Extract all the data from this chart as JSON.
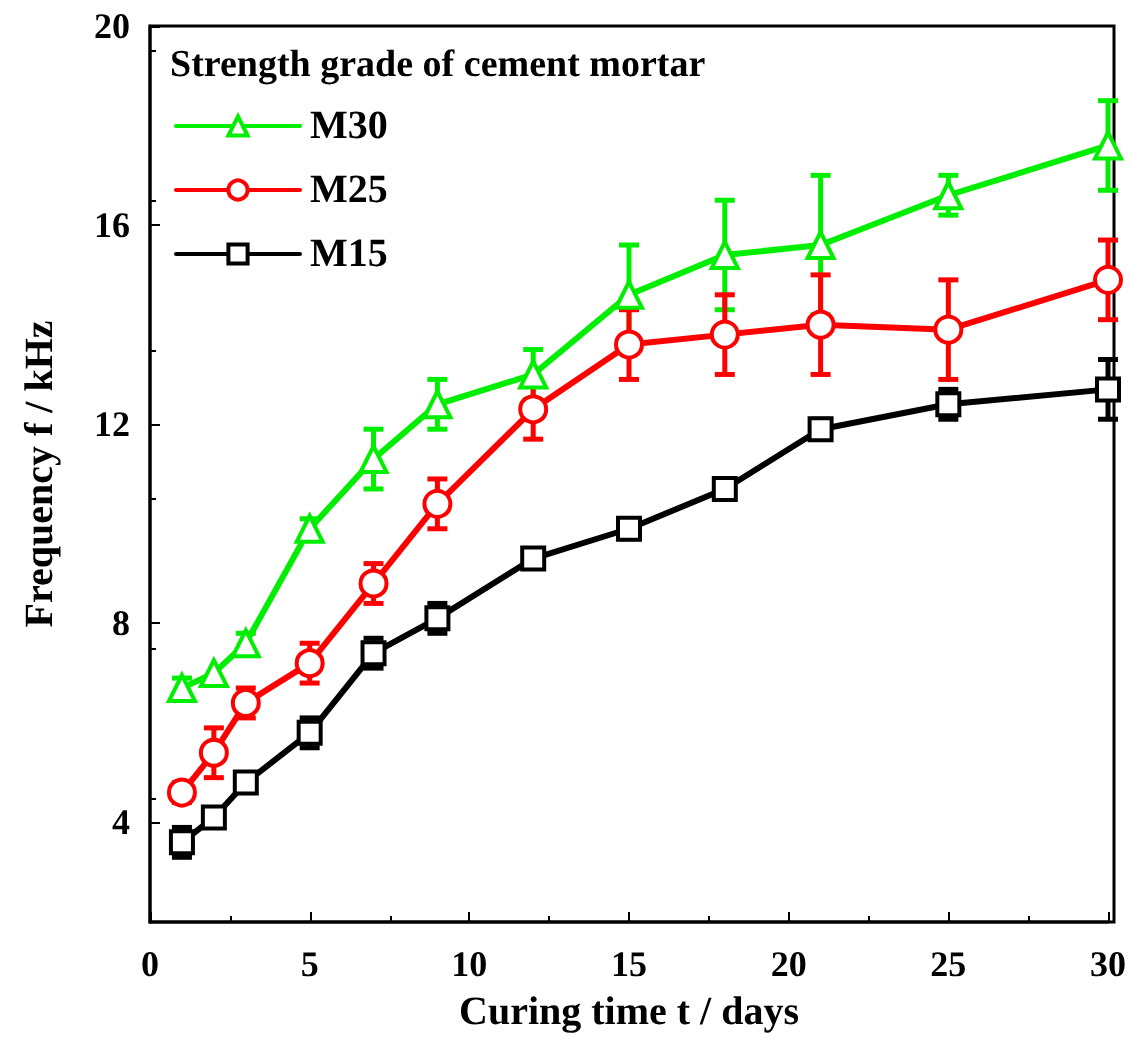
{
  "chart_data": {
    "type": "line",
    "xlabel": "Curing time t / days",
    "ylabel": "Frequency f / kHz",
    "legend_title": "Strength grade of cement mortar",
    "x": [
      1,
      2,
      3,
      5,
      7,
      9,
      12,
      15,
      18,
      21,
      25,
      30
    ],
    "series": [
      {
        "name": "M30",
        "color": "#00ee00",
        "marker": "triangle",
        "values": [
          6.7,
          7.0,
          7.6,
          9.9,
          11.3,
          12.4,
          13.0,
          14.6,
          15.4,
          15.6,
          16.6,
          17.6
        ],
        "errors": [
          0.2,
          null,
          0.2,
          0.2,
          0.6,
          0.5,
          0.5,
          1.0,
          1.1,
          1.4,
          0.4,
          0.9
        ]
      },
      {
        "name": "M25",
        "color": "#ff0000",
        "marker": "circle",
        "values": [
          4.6,
          5.4,
          6.4,
          7.2,
          8.8,
          10.4,
          12.3,
          13.6,
          13.8,
          14.0,
          13.9,
          14.9
        ],
        "errors": [
          0.2,
          0.5,
          0.3,
          0.4,
          0.4,
          0.5,
          0.6,
          0.7,
          0.8,
          1.0,
          1.0,
          0.8
        ]
      },
      {
        "name": "M15",
        "color": "#000000",
        "marker": "square",
        "values": [
          3.6,
          4.1,
          4.8,
          5.8,
          7.4,
          8.1,
          9.3,
          9.9,
          10.7,
          11.9,
          12.4,
          12.7
        ],
        "errors": [
          0.3,
          0.2,
          0.2,
          0.3,
          0.3,
          0.3,
          null,
          0.2,
          null,
          0.2,
          0.3,
          0.6
        ]
      }
    ],
    "xlim": [
      0,
      30
    ],
    "xticks": [
      0,
      5,
      10,
      15,
      20,
      25,
      30
    ],
    "ylim": [
      2,
      20
    ],
    "yticks": [
      4,
      8,
      12,
      16,
      20
    ],
    "grid": false,
    "legend": "top left",
    "line_style": "solid"
  }
}
